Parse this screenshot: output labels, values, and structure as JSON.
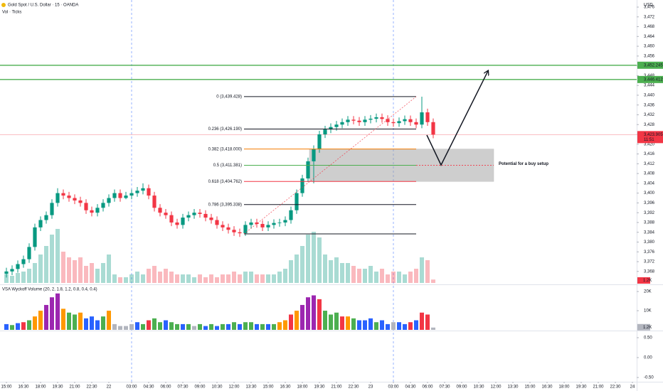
{
  "chart_data": {
    "type": "candlestick",
    "title": "Gold Spot / U.S. Dollar · 15 · OANDA",
    "subtitle": "Vol · Ticks",
    "currency": "USD",
    "up_color": "#089981",
    "down_color": "#f23645",
    "xlim": [
      -2.25,
      221.5
    ],
    "xticks": [
      {
        "value": 0,
        "label": "15:00"
      },
      {
        "value": 6,
        "label": "16:30"
      },
      {
        "value": 12,
        "label": "18:00"
      },
      {
        "value": 18,
        "label": "19:30"
      },
      {
        "value": 24,
        "label": "21:00"
      },
      {
        "value": 30,
        "label": "22:30"
      },
      {
        "value": 36,
        "label": "22"
      },
      {
        "value": 44,
        "label": "03:00"
      },
      {
        "value": 50,
        "label": "04:30"
      },
      {
        "value": 56,
        "label": "06:00"
      },
      {
        "value": 62,
        "label": "07:30"
      },
      {
        "value": 68,
        "label": "09:00"
      },
      {
        "value": 74,
        "label": "10:30"
      },
      {
        "value": 80,
        "label": "12:00"
      },
      {
        "value": 86,
        "label": "13:30"
      },
      {
        "value": 92,
        "label": "15:00"
      },
      {
        "value": 98,
        "label": "16:30"
      },
      {
        "value": 104,
        "label": "18:00"
      },
      {
        "value": 110,
        "label": "19:30"
      },
      {
        "value": 116,
        "label": "21:00"
      },
      {
        "value": 122,
        "label": "22:30"
      },
      {
        "value": 128,
        "label": "23"
      },
      {
        "value": 136,
        "label": "03:00"
      },
      {
        "value": 142,
        "label": "04:30"
      },
      {
        "value": 148,
        "label": "06:00"
      },
      {
        "value": 154,
        "label": "07:30"
      },
      {
        "value": 160,
        "label": "09:00"
      },
      {
        "value": 166,
        "label": "10:30"
      },
      {
        "value": 172,
        "label": "12:00"
      },
      {
        "value": 178,
        "label": "13:30"
      },
      {
        "value": 184,
        "label": "15:00"
      },
      {
        "value": 190,
        "label": "16:30"
      },
      {
        "value": 196,
        "label": "18:00"
      },
      {
        "value": 202,
        "label": "19:30"
      },
      {
        "value": 208,
        "label": "21:00"
      },
      {
        "value": 214,
        "label": "22:30"
      },
      {
        "value": 220,
        "label": "24"
      }
    ],
    "ylim": [
      3363.3,
      3478.9
    ],
    "yticks": [
      {
        "value": 3476,
        "label": "3,476"
      },
      {
        "value": 3472,
        "label": "3,472"
      },
      {
        "value": 3468,
        "label": "3,468"
      },
      {
        "value": 3464,
        "label": "3,464"
      },
      {
        "value": 3460,
        "label": "3,460"
      },
      {
        "value": 3456,
        "label": "3,456"
      },
      {
        "value": 3452,
        "label": "3,452"
      },
      {
        "value": 3448,
        "label": "3,448"
      },
      {
        "value": 3444,
        "label": "3,444"
      },
      {
        "value": 3440,
        "label": "3,440"
      },
      {
        "value": 3436,
        "label": "3,436"
      },
      {
        "value": 3432,
        "label": "3,432"
      },
      {
        "value": 3428,
        "label": "3,428"
      },
      {
        "value": 3424,
        "label": "3,424"
      },
      {
        "value": 3420,
        "label": "3,420"
      },
      {
        "value": 3416,
        "label": "3,416"
      },
      {
        "value": 3412,
        "label": "3,412"
      },
      {
        "value": 3408,
        "label": "3,408"
      },
      {
        "value": 3404,
        "label": "3,404"
      },
      {
        "value": 3400,
        "label": "3,400"
      },
      {
        "value": 3396,
        "label": "3,396"
      },
      {
        "value": 3392,
        "label": "3,392"
      },
      {
        "value": 3388,
        "label": "3,388"
      },
      {
        "value": 3384,
        "label": "3,384"
      },
      {
        "value": 3380,
        "label": "3,380"
      },
      {
        "value": 3376,
        "label": "3,376"
      },
      {
        "value": 3372,
        "label": "3,372"
      },
      {
        "value": 3368,
        "label": "3,368"
      }
    ],
    "x": [
      0,
      2,
      4,
      6,
      8,
      10,
      12,
      14,
      16,
      18,
      20,
      22,
      24,
      26,
      28,
      30,
      32,
      34,
      36,
      38,
      40,
      42,
      44,
      46,
      48,
      50,
      52,
      54,
      56,
      58,
      60,
      62,
      64,
      66,
      68,
      70,
      72,
      74,
      76,
      78,
      80,
      82,
      84,
      86,
      88,
      90,
      92,
      94,
      96,
      98,
      100,
      102,
      104,
      106,
      108,
      110,
      112,
      114,
      116,
      118,
      120,
      122,
      124,
      126,
      128,
      130,
      132,
      134,
      136,
      138,
      140,
      142,
      144,
      146,
      148,
      150
    ],
    "open": [
      3367,
      3368,
      3369,
      3371,
      3373,
      3378,
      3386,
      3389,
      3391,
      3396,
      3400,
      3399,
      3398,
      3397,
      3396,
      3393,
      3392,
      3394,
      3396,
      3398,
      3400,
      3398,
      3399,
      3400,
      3401,
      3402,
      3399,
      3394,
      3392,
      3391,
      3388,
      3387,
      3390,
      3391,
      3392,
      3391.5,
      3390,
      3389,
      3387,
      3386,
      3385,
      3384,
      3383.6,
      3387,
      3388,
      3387.4,
      3386,
      3387,
      3387.8,
      3388,
      3389,
      3393,
      3400,
      3406,
      3413,
      3418,
      3424,
      3426,
      3427,
      3428,
      3429,
      3430,
      3429.6,
      3429,
      3430,
      3430.4,
      3431,
      3430.3,
      3429,
      3428.6,
      3429.4,
      3430.2,
      3429,
      3428,
      3433,
      3429
    ],
    "high": [
      3369.5,
      3370.5,
      3372.5,
      3374.5,
      3379.5,
      3387.5,
      3390.5,
      3392.5,
      3397.5,
      3402,
      3401.5,
      3400.5,
      3399.5,
      3398.5,
      3397.5,
      3394.5,
      3395.5,
      3397.5,
      3399.5,
      3401.5,
      3401.5,
      3400.5,
      3401.5,
      3402.5,
      3404,
      3403.5,
      3400.5,
      3395.5,
      3393.5,
      3392.5,
      3389.5,
      3391.5,
      3392.5,
      3393.5,
      3393.5,
      3393,
      3391.5,
      3390.5,
      3388.5,
      3387.5,
      3386.5,
      3385.5,
      3388.5,
      3389.5,
      3389.5,
      3388.9,
      3388.5,
      3389.3,
      3389.5,
      3390.5,
      3394.5,
      3401.5,
      3407.5,
      3414.5,
      3419.5,
      3425.5,
      3427.5,
      3428.5,
      3429.5,
      3430.5,
      3431.5,
      3431.5,
      3431.1,
      3431.5,
      3431.9,
      3432.5,
      3432.5,
      3431.8,
      3430.5,
      3430.9,
      3431.7,
      3431.7,
      3430.5,
      3439.4,
      3434.5,
      3430.5
    ],
    "low": [
      3365.5,
      3366.5,
      3367.5,
      3369.5,
      3371.5,
      3376.5,
      3384.5,
      3387.5,
      3389.5,
      3394.5,
      3397.5,
      3396.5,
      3395.5,
      3394.5,
      3391.5,
      3390.5,
      3390.5,
      3392.5,
      3394.5,
      3396.5,
      3396.5,
      3397.5,
      3397.5,
      3398.5,
      3399.5,
      3397.5,
      3392.5,
      3390.5,
      3389.5,
      3386.5,
      3385.5,
      3385.5,
      3388.5,
      3389.5,
      3390,
      3388.5,
      3387.5,
      3385.5,
      3384.5,
      3383.5,
      3382.5,
      3382.1,
      3382.5,
      3385.5,
      3385.9,
      3384.5,
      3384.5,
      3385.5,
      3386.3,
      3386.5,
      3387.5,
      3391.5,
      3398.5,
      3404.5,
      3404,
      3416.5,
      3422.5,
      3424.5,
      3425.5,
      3426.5,
      3427.5,
      3428.1,
      3427.5,
      3427.5,
      3428.5,
      3428.9,
      3428.8,
      3427.5,
      3427.1,
      3427.1,
      3427.9,
      3427.5,
      3426.5,
      3426.5,
      3427.5,
      3422.4
    ],
    "close": [
      3368,
      3369,
      3371,
      3373,
      3378,
      3386,
      3389,
      3391,
      3396,
      3400,
      3399,
      3398,
      3397,
      3396,
      3393,
      3392,
      3394,
      3396,
      3398,
      3400,
      3398,
      3399,
      3400,
      3401,
      3402,
      3399,
      3394,
      3392,
      3391,
      3388,
      3387,
      3390,
      3391,
      3392,
      3391.5,
      3390,
      3389,
      3387,
      3386,
      3385,
      3384,
      3383.6,
      3387,
      3388,
      3387.4,
      3386,
      3387,
      3387.8,
      3388,
      3389,
      3393,
      3400,
      3406,
      3413,
      3418,
      3424,
      3426,
      3427,
      3428,
      3429,
      3430,
      3429.6,
      3429,
      3430,
      3430.4,
      3431,
      3430.3,
      3429,
      3428.6,
      3429.4,
      3430.2,
      3429,
      3428,
      3433,
      3429,
      3423.905
    ],
    "last_price_label": "3,423.905",
    "countdown": "11:51",
    "volume": {
      "values": [
        3000,
        2500,
        3500,
        4000,
        5000,
        7000,
        10000,
        13000,
        17000,
        19000,
        11000,
        9000,
        8000,
        9000,
        6000,
        7000,
        5000,
        7000,
        10000,
        3000,
        2000,
        2000,
        3000,
        4000,
        3000,
        5000,
        6000,
        4000,
        5000,
        4000,
        3000,
        3000,
        3000,
        2000,
        3000,
        2000,
        3000,
        2000,
        3000,
        3000,
        4000,
        3000,
        4000,
        4000,
        3000,
        3000,
        3000,
        3000,
        4000,
        5000,
        8000,
        10000,
        13000,
        17000,
        18000,
        16000,
        10000,
        8000,
        9000,
        7000,
        7000,
        6000,
        5000,
        5000,
        6000,
        4000,
        5000,
        3000,
        4000,
        4000,
        3000,
        4000,
        5000,
        9000,
        8000,
        1200
      ],
      "last_label": "1.2K"
    },
    "vsa": {
      "title": "VSA Wyckoff Volume (20, 2, 1.8, 1.2, 0.8, 0.4, 0.4)",
      "ylim": [
        0,
        23000
      ],
      "yticks": [
        {
          "value": 20000,
          "label": "20K"
        },
        {
          "value": 10000,
          "label": "10K"
        }
      ],
      "colors": [
        "#2962ff",
        "#4caf50",
        "#2962ff",
        "#f23645",
        "#4caf50",
        "#ff9800",
        "#ff9800",
        "#9c27b0",
        "#9c27b0",
        "#9c27b0",
        "#ff9800",
        "#4caf50",
        "#4caf50",
        "#ff9800",
        "#2962ff",
        "#2962ff",
        "#2962ff",
        "#4caf50",
        "#ff9800",
        "#b2b5be",
        "#b2b5be",
        "#b2b5be",
        "#b2b5be",
        "#2962ff",
        "#4caf50",
        "#f23645",
        "#4caf50",
        "#4caf50",
        "#2962ff",
        "#4caf50",
        "#4caf50",
        "#2962ff",
        "#4caf50",
        "#b2b5be",
        "#4caf50",
        "#2962ff",
        "#4caf50",
        "#2962ff",
        "#4caf50",
        "#2962ff",
        "#4caf50",
        "#2962ff",
        "#4caf50",
        "#4caf50",
        "#2962ff",
        "#4caf50",
        "#2962ff",
        "#4caf50",
        "#ff9800",
        "#ff9800",
        "#f23645",
        "#ff9800",
        "#9c27b0",
        "#9c27b0",
        "#9c27b0",
        "#f23645",
        "#4caf50",
        "#4caf50",
        "#4caf50",
        "#f23645",
        "#ff9800",
        "#4caf50",
        "#2962ff",
        "#2962ff",
        "#2962ff",
        "#4caf50",
        "#2962ff",
        "#2962ff",
        "#b2b5be",
        "#2962ff",
        "#2962ff",
        "#f23645",
        "#2962ff",
        "#f23645",
        "#f23645",
        "#b2b5be"
      ]
    },
    "lower_pane": {
      "ylim": [
        -0.607,
        0.643
      ],
      "yticks": [
        {
          "value": 0.5,
          "label": "0.50"
        },
        {
          "value": 0,
          "label": "0.00"
        },
        {
          "value": -0.5,
          "label": "-0.50"
        }
      ]
    },
    "hlines": {
      "color": "#4caf50",
      "lines": [
        {
          "price": 3452.245,
          "label": "3,452.245"
        },
        {
          "price": 3446.412,
          "label": "3,446.412"
        }
      ]
    },
    "fib": {
      "x": [
        83.5,
        144
      ],
      "levels": [
        {
          "price": 3439.428,
          "label": "0 (3,439.428)",
          "color": "#131722"
        },
        {
          "price": 3426.19,
          "label": "0.236 (3,426.190)",
          "color": "#131722"
        },
        {
          "price": 3418.0,
          "label": "0.382 (3,418.000)",
          "color": "#f57c00"
        },
        {
          "price": 3411.381,
          "label": "0.5 (3,411.381)",
          "color": "#4caf50"
        },
        {
          "price": 3404.762,
          "label": "0.618 (3,404.762)",
          "color": "#f23645"
        },
        {
          "price": 3395.338,
          "label": "0.786 (3,395.338)",
          "color": "#131722"
        },
        {
          "price": 3383.33,
          "color": "#131722"
        }
      ]
    },
    "zone": {
      "x": [
        106.5,
        171.25
      ],
      "color": "#9e9e9e"
    },
    "arrow": {
      "x": [
        147.75,
        152.75,
        169.25
      ],
      "y": [
        3423.7,
        3411.5,
        3449.9
      ]
    },
    "annotation": {
      "text": "Potential for a buy setup",
      "x": 173,
      "y": 3412
    }
  }
}
